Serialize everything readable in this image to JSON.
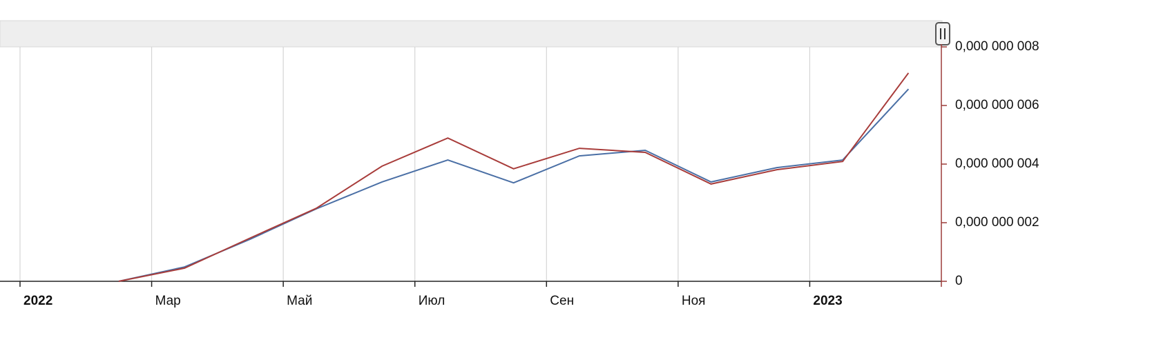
{
  "chart_data": {
    "type": "line",
    "x": [
      "2022-02",
      "2022-03",
      "2022-04",
      "2022-05",
      "2022-06",
      "2022-07",
      "2022-08",
      "2022-09",
      "2022-10",
      "2022-11",
      "2022-12",
      "2023-01",
      "2023-02"
    ],
    "series": [
      {
        "color": "#4a6fa5",
        "values": [
          0,
          4.9e-10,
          1.44e-09,
          2.47e-09,
          3.39e-09,
          4.14e-09,
          3.36e-09,
          4.28e-09,
          4.47e-09,
          3.39e-09,
          3.88e-09,
          4.14e-09,
          6.56e-09
        ]
      },
      {
        "color": "#a83c3a",
        "values": [
          0,
          4.5e-10,
          1.48e-09,
          2.49e-09,
          3.93e-09,
          4.89e-09,
          3.84e-09,
          4.54e-09,
          4.4e-09,
          3.32e-09,
          3.81e-09,
          4.09e-09,
          7.11e-09
        ]
      }
    ],
    "xlim": [
      "2022-01",
      "2023-03"
    ],
    "xticks": [
      {
        "value": "2022-01",
        "label": "2022"
      },
      {
        "value": "2022-03",
        "label": "Мар"
      },
      {
        "value": "2022-05",
        "label": "Май"
      },
      {
        "value": "2022-07",
        "label": "Июл"
      },
      {
        "value": "2022-09",
        "label": "Сен"
      },
      {
        "value": "2022-11",
        "label": "Ноя"
      },
      {
        "value": "2023-01",
        "label": "2023"
      }
    ],
    "ylim": [
      0,
      8e-09
    ],
    "yticks": [
      {
        "value": 0,
        "label": "0"
      },
      {
        "value": 2e-09,
        "label": "0,000 000 002"
      },
      {
        "value": 4e-09,
        "label": "0,000 000 004"
      },
      {
        "value": 6e-09,
        "label": "0,000 000 006"
      },
      {
        "value": 8e-09,
        "label": "0,000 000 008"
      }
    ],
    "grid": true,
    "axis_color": "#9b3b38"
  }
}
